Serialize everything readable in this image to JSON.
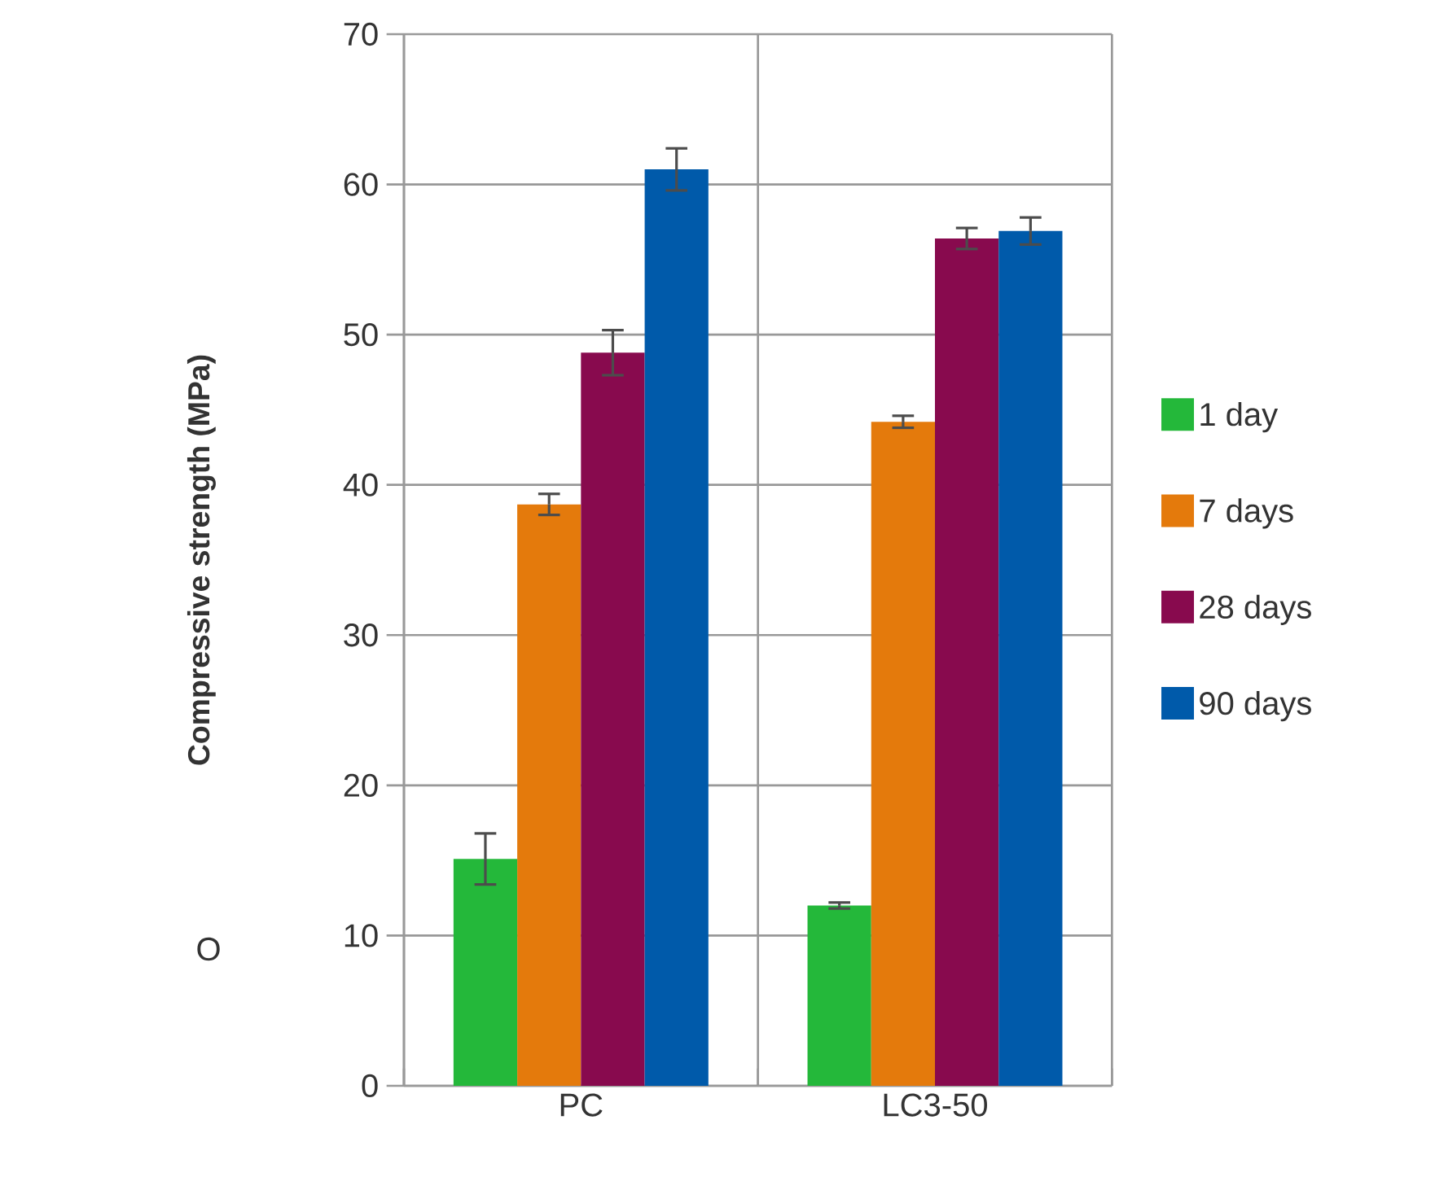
{
  "chart_data": {
    "type": "bar",
    "ylabel": "Compressive strength (MPa)",
    "categories": [
      "PC",
      "LC3-50"
    ],
    "series": [
      {
        "name": "1 day",
        "color": "#24b83a",
        "values": [
          15.1,
          12.0
        ],
        "errors": [
          1.7,
          0.2
        ]
      },
      {
        "name": "7 days",
        "color": "#e47a0c",
        "values": [
          38.7,
          44.2
        ],
        "errors": [
          0.7,
          0.4
        ]
      },
      {
        "name": "28 days",
        "color": "#880a4e",
        "values": [
          48.8,
          56.4
        ],
        "errors": [
          1.5,
          0.7
        ]
      },
      {
        "name": "90 days",
        "color": "#005aaa",
        "values": [
          61.0,
          56.9
        ],
        "errors": [
          1.4,
          0.9
        ]
      }
    ],
    "ylim": [
      0,
      70
    ],
    "yticks": [
      0,
      10,
      20,
      30,
      40,
      50,
      60,
      70
    ],
    "grid": true,
    "legend": "right",
    "annotations": [
      "O"
    ]
  }
}
